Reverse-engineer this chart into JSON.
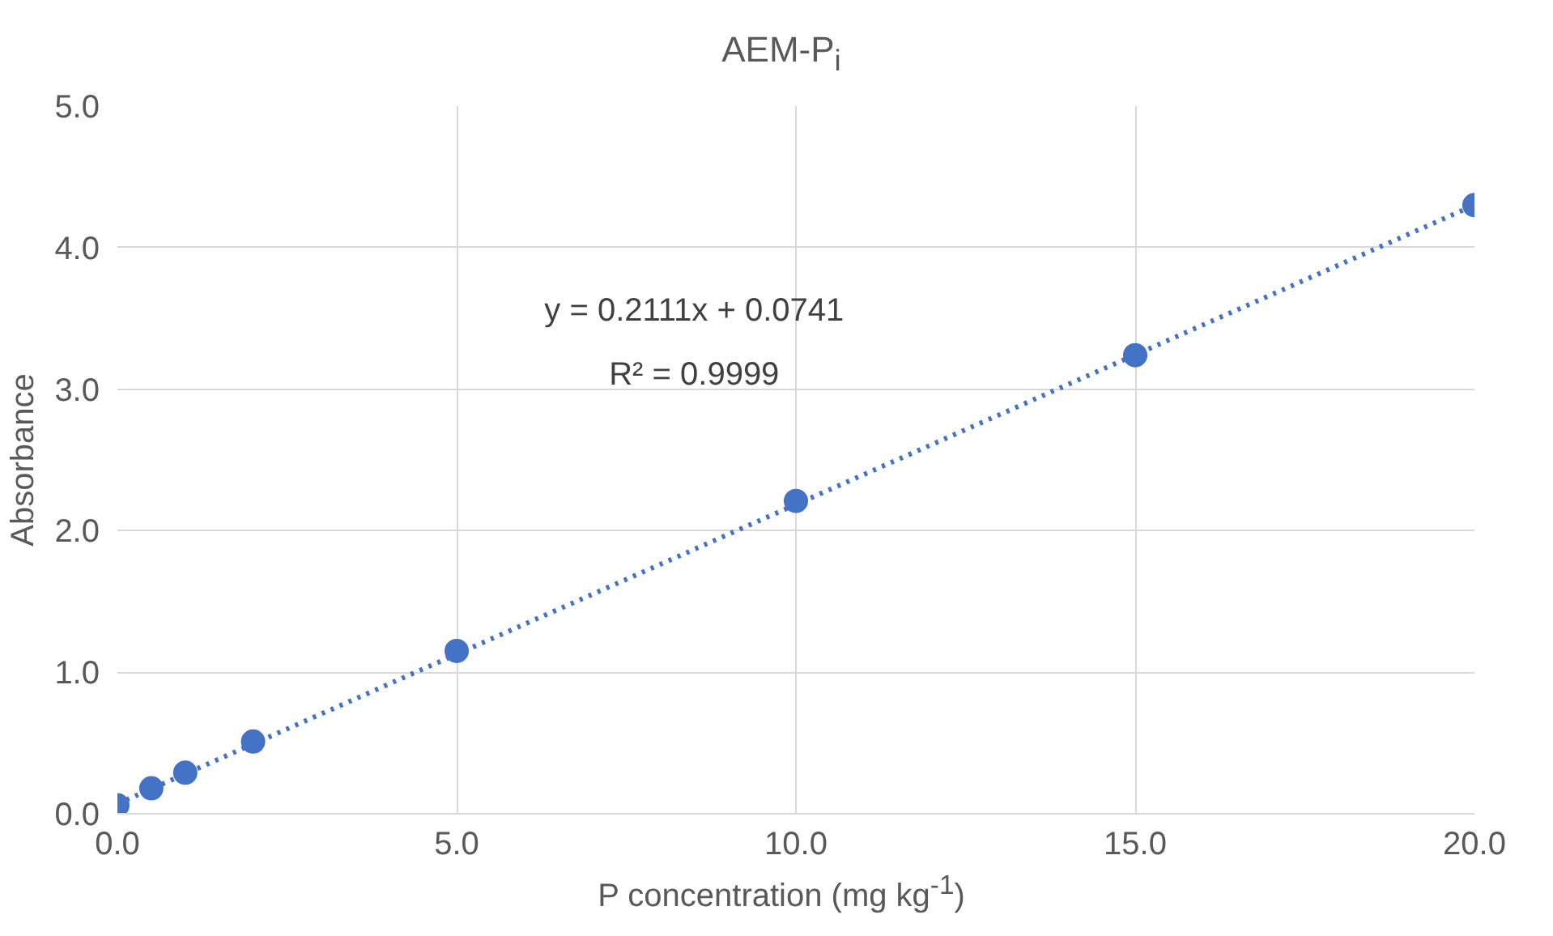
{
  "chart_data": {
    "type": "scatter",
    "title": "AEM-P$_{i}$",
    "xlabel": "P concentration (mg kg$^{-1}$)",
    "ylabel": "Absorbance",
    "x": [
      0,
      0.5,
      1,
      2,
      5,
      10,
      15,
      20
    ],
    "series": [
      {
        "color": "#4472c4",
        "marker": "circle",
        "values": [
          0.06,
          0.18,
          0.29,
          0.51,
          1.15,
          2.21,
          3.24,
          4.3
        ]
      },
      {
        "type": "line",
        "color": "#4472c4",
        "line_style": "dotted",
        "marker": "none",
        "x": [
          0,
          20
        ],
        "values": [
          0.07,
          4.3
        ]
      }
    ],
    "xlim": [
      0,
      20
    ],
    "ylim": [
      0,
      5
    ],
    "xticks": [
      {
        "value": 0,
        "label": "0.0"
      },
      {
        "value": 5,
        "label": "5.0"
      },
      {
        "value": 10,
        "label": "10.0"
      },
      {
        "value": 15,
        "label": "15.0"
      },
      {
        "value": 20,
        "label": "20.0"
      }
    ],
    "yticks": [
      {
        "value": 0,
        "label": "0.0"
      },
      {
        "value": 1,
        "label": "1.0"
      },
      {
        "value": 2,
        "label": "2.0"
      },
      {
        "value": 3,
        "label": "3.0"
      },
      {
        "value": 4,
        "label": "4.0"
      },
      {
        "value": 5,
        "label": "5.0"
      }
    ],
    "annotations": [
      "y = 0.2111x + 0.0741",
      "R² = 0.9999"
    ],
    "grid": true
  }
}
